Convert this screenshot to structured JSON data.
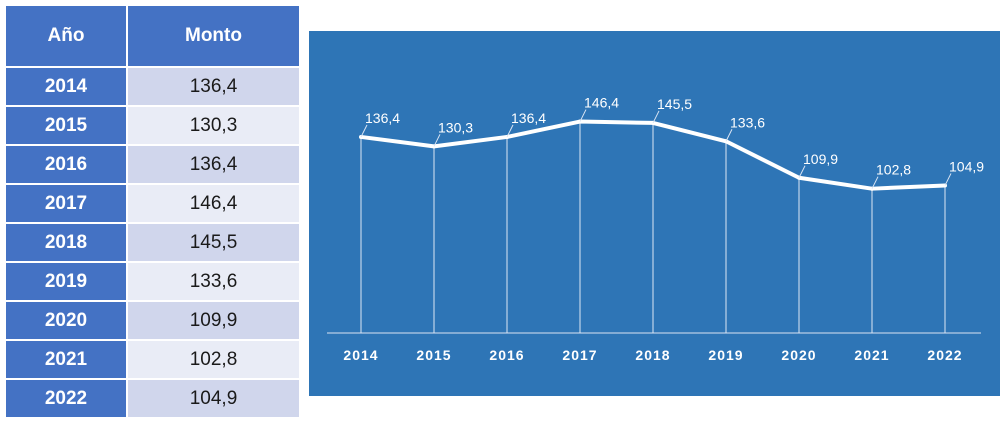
{
  "table": {
    "headers": {
      "year": "Año",
      "amount": "Monto"
    },
    "rows": [
      {
        "year": "2014",
        "amount": "136,4"
      },
      {
        "year": "2015",
        "amount": "130,3"
      },
      {
        "year": "2016",
        "amount": "136,4"
      },
      {
        "year": "2017",
        "amount": "146,4"
      },
      {
        "year": "2018",
        "amount": "145,5"
      },
      {
        "year": "2019",
        "amount": "133,6"
      },
      {
        "year": "2020",
        "amount": "109,9"
      },
      {
        "year": "2021",
        "amount": "102,8"
      },
      {
        "year": "2022",
        "amount": "104,9"
      }
    ]
  },
  "chart_data": {
    "type": "line",
    "categories": [
      "2014",
      "2015",
      "2016",
      "2017",
      "2018",
      "2019",
      "2020",
      "2021",
      "2022"
    ],
    "series": [
      {
        "values": [
          136.4,
          130.3,
          136.4,
          146.4,
          145.5,
          133.6,
          109.9,
          102.8,
          104.9
        ]
      }
    ],
    "data_labels": [
      "136,4",
      "130,3",
      "136,4",
      "146,4",
      "145,5",
      "133,6",
      "109,9",
      "102,8",
      "104,9"
    ],
    "ylim": [
      0,
      150
    ],
    "grid": false,
    "drop_lines": true,
    "legend": "none",
    "colors": {
      "background": "#2e75b6",
      "line": "#ffffff"
    }
  },
  "colors": {
    "header": "#4472c4",
    "row_odd": "#d0d6ec",
    "row_even": "#e9ecf6"
  }
}
